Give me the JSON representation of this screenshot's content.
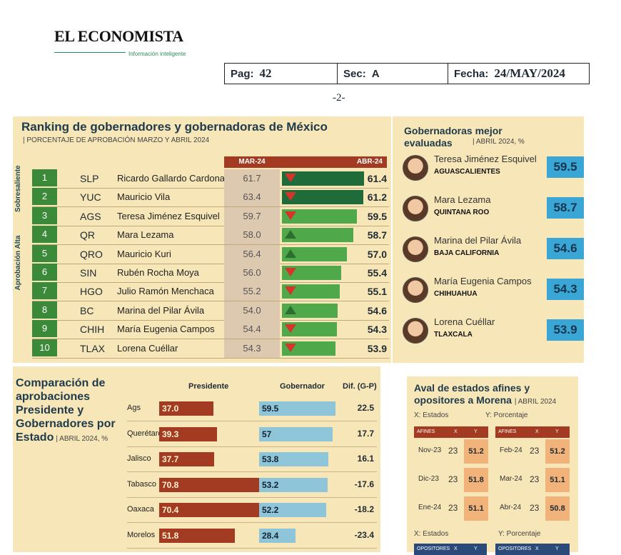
{
  "masthead": {
    "title": "EL ECONOMISTA",
    "tagline": "Información inteligente"
  },
  "header": {
    "pag_label": "Pag:",
    "pag_value": "42",
    "sec_label": "Sec:",
    "sec_value": "A",
    "fecha_label": "Fecha:",
    "fecha_value": "24/MAY/2024"
  },
  "page_number": "-2-",
  "ranking": {
    "title": "Ranking de gobernadores y gobernadoras de México",
    "subtitle": "| PORCENTAJE DE APROBACIÓN MARZO Y ABRIL 2024",
    "col_mar": "MAR-24",
    "col_abr": "ABR-24",
    "group_top": "Sobresaliente",
    "group_high": "Aprobación Alta",
    "rows": [
      {
        "rank": "1",
        "abbr": "SLP",
        "name": "Ricardo Gallardo Cardona",
        "mar": "61.7",
        "abr": "61.4",
        "trend": "down"
      },
      {
        "rank": "2",
        "abbr": "YUC",
        "name": "Mauricio Vila",
        "mar": "63.4",
        "abr": "61.2",
        "trend": "down"
      },
      {
        "rank": "3",
        "abbr": "AGS",
        "name": "Teresa Jiménez Esquivel",
        "mar": "59.7",
        "abr": "59.5",
        "trend": "down"
      },
      {
        "rank": "4",
        "abbr": "QR",
        "name": "Mara Lezama",
        "mar": "58.0",
        "abr": "58.7",
        "trend": "up"
      },
      {
        "rank": "5",
        "abbr": "QRO",
        "name": "Mauricio Kuri",
        "mar": "56.4",
        "abr": "57.0",
        "trend": "up"
      },
      {
        "rank": "6",
        "abbr": "SIN",
        "name": "Rubén Rocha Moya",
        "mar": "56.0",
        "abr": "55.4",
        "trend": "down"
      },
      {
        "rank": "7",
        "abbr": "HGO",
        "name": "Julio Ramón Menchaca",
        "mar": "55.2",
        "abr": "55.1",
        "trend": "down"
      },
      {
        "rank": "8",
        "abbr": "BC",
        "name": "Marina del Pilar Ávila",
        "mar": "54.0",
        "abr": "54.6",
        "trend": "up"
      },
      {
        "rank": "9",
        "abbr": "CHIH",
        "name": "María Eugenia Campos",
        "mar": "54.4",
        "abr": "54.3",
        "trend": "down"
      },
      {
        "rank": "10",
        "abbr": "TLAX",
        "name": "Lorena Cuéllar",
        "mar": "54.3",
        "abr": "53.9",
        "trend": "down"
      }
    ],
    "colors": {
      "dark_green": "#1f6b3a",
      "light_green": "#4fa84a",
      "down": "#d6342a",
      "up": "#2c6e2f"
    }
  },
  "governors": {
    "title": "Gobernadoras mejor evaluadas",
    "subtitle": "| ABRIL 2024, %",
    "items": [
      {
        "name": "Teresa Jiménez Esquivel",
        "state": "AGUASCALIENTES",
        "score": "59.5"
      },
      {
        "name": "Mara Lezama",
        "state": "QUINTANA ROO",
        "score": "58.7"
      },
      {
        "name": "Marina del Pilar Ávila",
        "state": "BAJA CALIFORNIA",
        "score": "54.6"
      },
      {
        "name": "María Eugenia Campos",
        "state": "CHIHUAHUA",
        "score": "54.3"
      },
      {
        "name": "Lorena Cuéllar",
        "state": "TLAXCALA",
        "score": "53.9"
      }
    ]
  },
  "comparison": {
    "title": "Comparación de aprobaciones Presidente y Gobernadores por Estado",
    "subtitle": "| ABRIL 2024, %",
    "col_pres": "Presidente",
    "col_gov": "Gobernador",
    "col_dif": "Dif. (G-P)",
    "rows": [
      {
        "state": "Ags",
        "pres": "37.0",
        "gov": "59.5",
        "dif": "22.5"
      },
      {
        "state": "Querétaro",
        "pres": "39.3",
        "gov": "57",
        "dif": "17.7"
      },
      {
        "state": "Jalisco",
        "pres": "37.7",
        "gov": "53.8",
        "dif": "16.1"
      },
      {
        "state": "Tabasco",
        "pres": "70.8",
        "gov": "53.2",
        "dif": "-17.6"
      },
      {
        "state": "Oaxaca",
        "pres": "70.4",
        "gov": "52.2",
        "dif": "-18.2"
      },
      {
        "state": "Morelos",
        "pres": "51.8",
        "gov": "28.4",
        "dif": "-23.4"
      }
    ]
  },
  "aval": {
    "title": "Aval de estados afines y opositores a Morena",
    "subtitle": "| ABRIL 2024",
    "x_label": "X: Estados",
    "y_label": "Y: Porcentaje",
    "afines_head": [
      "AFINES",
      "X",
      "Y"
    ],
    "opositores_head": [
      "OPOSITORES",
      "X",
      "Y"
    ],
    "left": [
      {
        "month": "Nov-23",
        "x": "23",
        "y": "51.2"
      },
      {
        "month": "Dic-23",
        "x": "23",
        "y": "51.8"
      },
      {
        "month": "Ene-24",
        "x": "23",
        "y": "51.1"
      }
    ],
    "right": [
      {
        "month": "Feb-24",
        "x": "23",
        "y": "51.2"
      },
      {
        "month": "Mar-24",
        "x": "23",
        "y": "51.1"
      },
      {
        "month": "Abr-24",
        "x": "23",
        "y": "50.8"
      }
    ]
  }
}
